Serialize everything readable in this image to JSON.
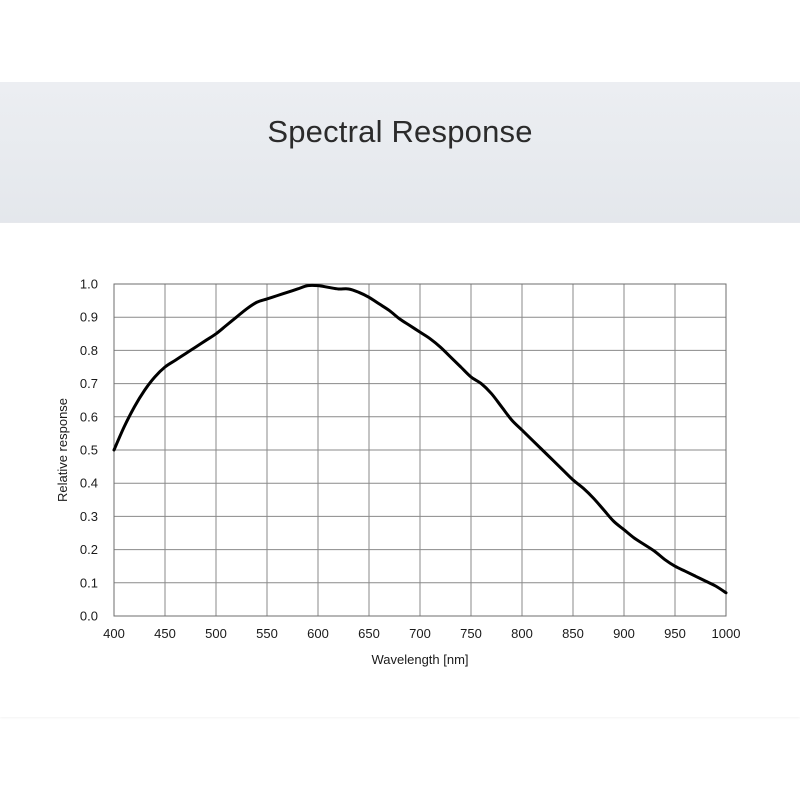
{
  "header": {
    "title": "Spectral Response"
  },
  "chart_data": {
    "type": "line",
    "title": "",
    "xlabel": "Wavelength  [nm]",
    "ylabel": "Relative  response",
    "xlim": [
      400,
      1000
    ],
    "ylim": [
      0.0,
      1.0
    ],
    "grid": true,
    "x_ticks": [
      "400",
      "450",
      "500",
      "550",
      "600",
      "650",
      "700",
      "750",
      "800",
      "850",
      "900",
      "950",
      "1000"
    ],
    "y_ticks": [
      "0.0",
      "0.1",
      "0.2",
      "0.3",
      "0.4",
      "0.5",
      "0.6",
      "0.7",
      "0.8",
      "0.9",
      "1.0"
    ],
    "line_color": "#000000",
    "series": [
      {
        "x": [
          400,
          410,
          420,
          430,
          440,
          450,
          460,
          470,
          480,
          490,
          500,
          510,
          520,
          530,
          540,
          550,
          560,
          570,
          580,
          590,
          600,
          610,
          620,
          630,
          640,
          650,
          660,
          670,
          680,
          690,
          700,
          710,
          720,
          730,
          740,
          750,
          760,
          770,
          780,
          790,
          800,
          810,
          820,
          830,
          840,
          850,
          860,
          870,
          880,
          890,
          900,
          910,
          920,
          930,
          940,
          950,
          960,
          970,
          980,
          990,
          1000
        ],
        "y": [
          0.5,
          0.57,
          0.63,
          0.68,
          0.72,
          0.75,
          0.77,
          0.79,
          0.81,
          0.83,
          0.85,
          0.875,
          0.9,
          0.925,
          0.945,
          0.955,
          0.965,
          0.975,
          0.985,
          0.995,
          0.995,
          0.99,
          0.985,
          0.985,
          0.975,
          0.96,
          0.94,
          0.92,
          0.895,
          0.875,
          0.855,
          0.835,
          0.81,
          0.78,
          0.75,
          0.72,
          0.7,
          0.67,
          0.63,
          0.59,
          0.56,
          0.53,
          0.5,
          0.47,
          0.44,
          0.41,
          0.385,
          0.355,
          0.32,
          0.285,
          0.26,
          0.235,
          0.215,
          0.195,
          0.17,
          0.15,
          0.135,
          0.12,
          0.105,
          0.09,
          0.07
        ]
      }
    ]
  }
}
